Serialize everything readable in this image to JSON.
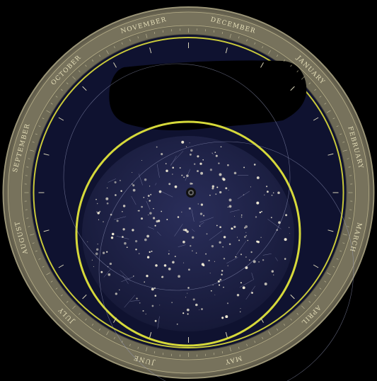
{
  "planisphere": {
    "months": [
      "DECEMBER",
      "JANUARY",
      "FEBRUARY",
      "MARCH",
      "APRIL",
      "MAY",
      "JUNE",
      "JULY",
      "AUGUST",
      "SEPTEMBER",
      "OCTOBER",
      "NOVEMBER"
    ],
    "colors": {
      "background": "#000000",
      "rim": "#8a8466",
      "rim_dark": "#3a3a33",
      "month_band": "#6f6b57",
      "dial": "#0f1230",
      "horizon": "#d6d93a",
      "sky": "#1e2146",
      "stars": "#f2ecd6",
      "window_cutout": "#000000"
    },
    "icons": {
      "center_pivot": "pivot-rivet-icon"
    }
  }
}
